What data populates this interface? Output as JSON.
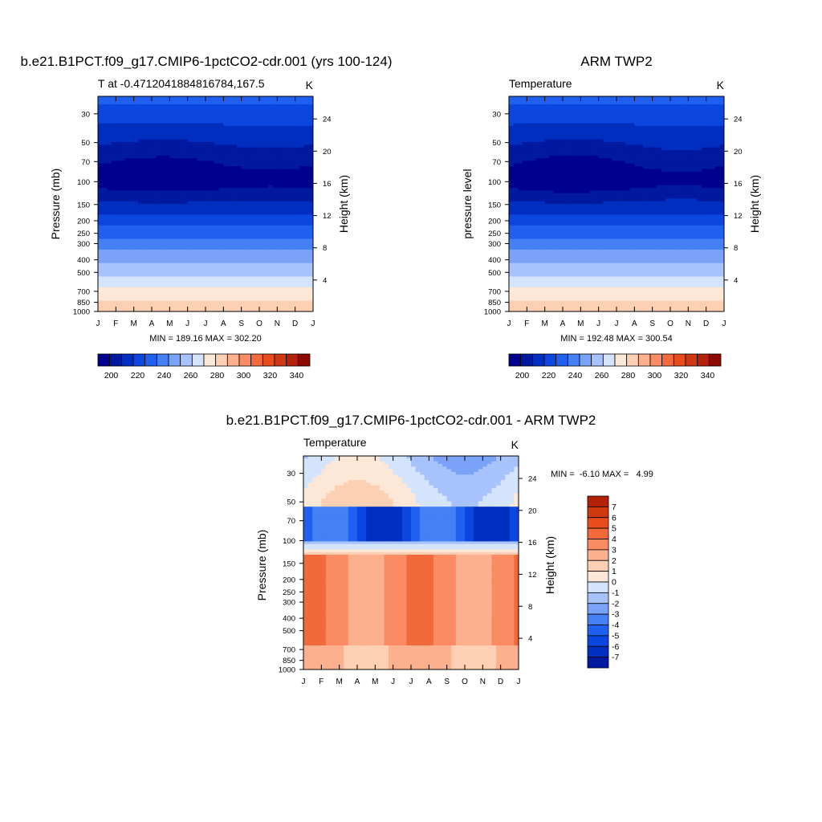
{
  "palette": {
    "cool": [
      "#00008f",
      "#0019a0",
      "#002ebf",
      "#0a46df",
      "#2060f0",
      "#4580f5",
      "#7aa2f8",
      "#a8c2fb",
      "#d4e4fd"
    ],
    "warm": [
      "#fde8d8",
      "#fdd0b4",
      "#fcb08e",
      "#fa8b62",
      "#f26a3c",
      "#e84c1c",
      "#d03810",
      "#b52008",
      "#8c0a00"
    ]
  },
  "chart_data": [
    {
      "type": "heatmap",
      "title": "b.e21.B1PCT.f09_g17.CMIP6-1pctCO2-cdr.001 (yrs 100-124)",
      "left_string": "T at -0.4712041884816784,167.5",
      "right_string": "K",
      "xlabel": "",
      "ylabel": "Pressure (mb)",
      "ylabel_right": "Height (km)",
      "x": [
        "J",
        "F",
        "M",
        "A",
        "M",
        "J",
        "J",
        "A",
        "S",
        "O",
        "N",
        "D",
        "J"
      ],
      "yticks": [
        30,
        50,
        70,
        100,
        150,
        200,
        250,
        300,
        400,
        500,
        700,
        850,
        1000
      ],
      "ylim": [
        1000,
        22
      ],
      "yticks_right": [
        4,
        8,
        12,
        16,
        20,
        24
      ],
      "stats": "MIN = 189.16 MAX = 302.20",
      "min": 189.16,
      "max": 302.2,
      "colorbar": {
        "labels": [
          "200",
          "220",
          "240",
          "260",
          "280",
          "300",
          "320",
          "340"
        ],
        "levels": [
          190,
          200,
          210,
          220,
          230,
          240,
          250,
          260,
          270,
          280,
          290,
          300,
          310,
          320,
          330,
          340,
          350
        ]
      }
    },
    {
      "type": "heatmap",
      "title": "ARM TWP2",
      "left_string": "Temperature",
      "right_string": "K",
      "xlabel": "",
      "ylabel": "pressure level",
      "ylabel_right": "Height (km)",
      "x": [
        "J",
        "F",
        "M",
        "A",
        "M",
        "J",
        "J",
        "A",
        "S",
        "O",
        "N",
        "D",
        "J"
      ],
      "yticks": [
        30,
        50,
        70,
        100,
        150,
        200,
        250,
        300,
        400,
        500,
        700,
        850,
        1000
      ],
      "ylim": [
        1000,
        22
      ],
      "yticks_right": [
        4,
        8,
        12,
        16,
        20,
        24
      ],
      "stats": "MIN = 192.48 MAX = 300.54",
      "min": 192.48,
      "max": 300.54,
      "colorbar": {
        "labels": [
          "200",
          "220",
          "240",
          "260",
          "280",
          "300",
          "320",
          "340"
        ],
        "levels": [
          190,
          200,
          210,
          220,
          230,
          240,
          250,
          260,
          270,
          280,
          290,
          300,
          310,
          320,
          330,
          340,
          350
        ]
      }
    },
    {
      "type": "heatmap",
      "title": "b.e21.B1PCT.f09_g17.CMIP6-1pctCO2-cdr.001 - ARM TWP2",
      "left_string": "Temperature",
      "right_string": "K",
      "xlabel": "",
      "ylabel": "Pressure (mb)",
      "ylabel_right": "Height (km)",
      "x": [
        "J",
        "F",
        "M",
        "A",
        "M",
        "J",
        "J",
        "A",
        "S",
        "O",
        "N",
        "D",
        "J"
      ],
      "yticks": [
        30,
        50,
        70,
        100,
        150,
        200,
        250,
        300,
        400,
        500,
        700,
        850,
        1000
      ],
      "ylim": [
        1000,
        22
      ],
      "yticks_right": [
        4,
        8,
        12,
        16,
        20,
        24
      ],
      "stats": "MIN =  -6.10 MAX =   4.99",
      "min": -6.1,
      "max": 4.99,
      "colorbar": {
        "labels": [
          "7",
          "6",
          "5",
          "4",
          "3",
          "2",
          "1",
          "0",
          "-1",
          "-2",
          "-3",
          "-4",
          "-5",
          "-6",
          "-7"
        ],
        "levels": [
          -8,
          -7,
          -6,
          -5,
          -4,
          -3,
          -2,
          -1,
          0,
          1,
          2,
          3,
          4,
          5,
          6,
          7,
          8
        ]
      }
    }
  ]
}
